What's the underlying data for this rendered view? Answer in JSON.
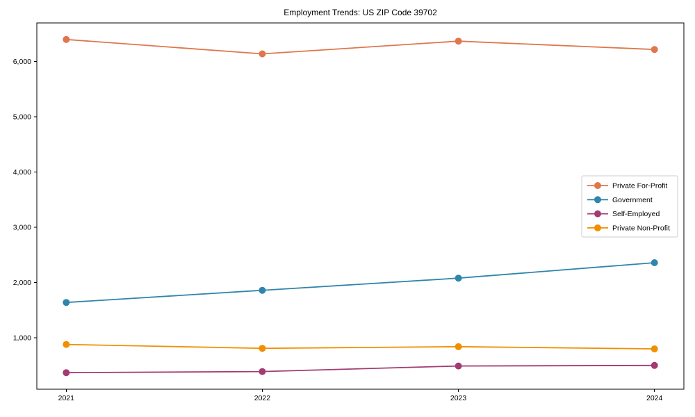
{
  "title": "Employment Trends: US ZIP Code 39702",
  "chart_data": {
    "type": "line",
    "title": "Employment Trends: US ZIP Code 39702",
    "xlabel": "",
    "ylabel": "",
    "x": [
      2021,
      2022,
      2023,
      2024
    ],
    "xtick_labels": [
      "2021",
      "2022",
      "2023",
      "2024"
    ],
    "yticks": [
      1000,
      2000,
      3000,
      4000,
      5000,
      6000
    ],
    "ytick_labels": [
      "1,000",
      "2,000",
      "3,000",
      "4,000",
      "5,000",
      "6,000"
    ],
    "ylim": [
      70,
      6700
    ],
    "grid": false,
    "marker": "circle",
    "legend_position": "center-right",
    "series": [
      {
        "name": "Private For-Profit",
        "color": "#E0764C",
        "values": [
          6400,
          6140,
          6370,
          6220
        ]
      },
      {
        "name": "Government",
        "color": "#2E86AB",
        "values": [
          1640,
          1860,
          2080,
          2360
        ]
      },
      {
        "name": "Self-Employed",
        "color": "#A23B72",
        "values": [
          370,
          390,
          490,
          500
        ]
      },
      {
        "name": "Private Non-Profit",
        "color": "#F18F01",
        "values": [
          880,
          810,
          840,
          800
        ]
      }
    ],
    "axis_color": "#000000",
    "legend_border_color": "#cccccc"
  }
}
